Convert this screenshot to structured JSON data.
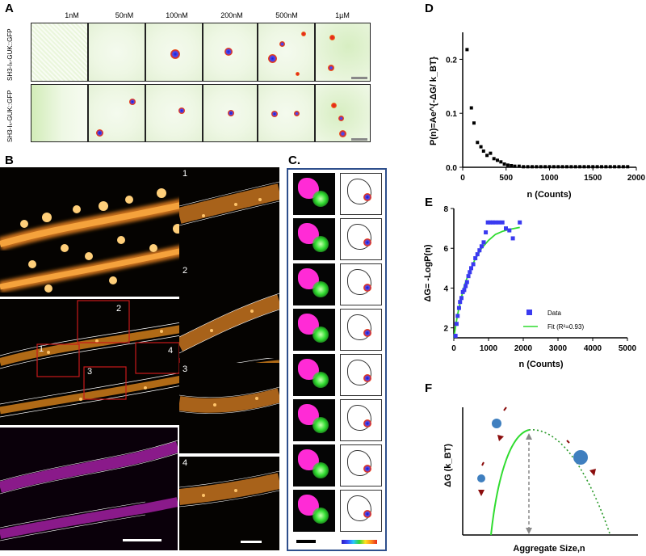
{
  "panels": {
    "a": "A",
    "b": "B",
    "c": "C.",
    "d": "D",
    "e": "E",
    "f": "F"
  },
  "panelA": {
    "concentrations": [
      "1nM",
      "50nM",
      "100nM",
      "200nM",
      "500nM",
      "1µM"
    ],
    "row_labels": [
      "SH3-Iₕ-GUK::GFP",
      "SH3-Iₕ-GUK::GFP"
    ]
  },
  "panelB": {
    "insets": [
      "1",
      "2",
      "3",
      "4"
    ],
    "box_labels": [
      "1",
      "2",
      "3",
      "4"
    ]
  },
  "chart_data": [
    {
      "type": "scatter",
      "panel": "D",
      "ylabel": "P(n)=Ae^{-ΔG/ k_BT}",
      "xlabel": "n (Counts)",
      "xlim": [
        0,
        2000
      ],
      "ylim": [
        0,
        0.25
      ],
      "xticks": [
        "0",
        "500",
        "1000",
        "1500",
        "2000"
      ],
      "yticks": [
        "0.0",
        "0.1",
        "0.2"
      ],
      "x": [
        50,
        100,
        130,
        170,
        210,
        240,
        280,
        320,
        360,
        400,
        440,
        480,
        520,
        560,
        600,
        650,
        700,
        750,
        800,
        850,
        900,
        950,
        1000,
        1050,
        1100,
        1150,
        1200,
        1250,
        1300,
        1350,
        1400,
        1450,
        1500,
        1550,
        1600,
        1650,
        1700,
        1750,
        1800,
        1850,
        1900
      ],
      "y": [
        0.218,
        0.11,
        0.082,
        0.046,
        0.038,
        0.03,
        0.022,
        0.026,
        0.016,
        0.013,
        0.01,
        0.006,
        0.004,
        0.003,
        0.002,
        0.002,
        0.001,
        0.001,
        0.001,
        0.001,
        0.001,
        0.001,
        0.001,
        0.001,
        0.001,
        0.001,
        0.001,
        0.001,
        0.001,
        0.001,
        0.001,
        0.001,
        0.001,
        0.001,
        0.001,
        0.001,
        0.001,
        0.001,
        0.001,
        0.001,
        0.001
      ]
    },
    {
      "type": "scatter",
      "panel": "E",
      "ylabel": "ΔG= -LogP(n)",
      "xlabel": "n (Counts)",
      "xlim": [
        0,
        5000
      ],
      "ylim": [
        1.5,
        8
      ],
      "xticks": [
        "0",
        "1000",
        "2000",
        "3000",
        "4000",
        "5000"
      ],
      "yticks": [
        "2",
        "4",
        "6",
        "8"
      ],
      "series": [
        {
          "name": "Data",
          "x": [
            50,
            80,
            110,
            150,
            180,
            220,
            260,
            300,
            340,
            380,
            420,
            460,
            500,
            560,
            620,
            680,
            740,
            800,
            860,
            920,
            980,
            1050,
            1120,
            1200,
            1300,
            1400,
            1500,
            1600,
            1700,
            1900
          ],
          "y": [
            1.6,
            2.2,
            2.6,
            3.0,
            3.3,
            3.5,
            3.8,
            3.9,
            4.1,
            4.3,
            4.6,
            4.8,
            5.0,
            5.2,
            5.5,
            5.7,
            5.9,
            6.1,
            6.3,
            6.8,
            7.3,
            7.3,
            7.3,
            7.3,
            7.3,
            7.3,
            7.0,
            6.9,
            6.5,
            7.3
          ]
        },
        {
          "name": "Fit (R²=0.93)",
          "x": [
            0,
            100,
            200,
            300,
            400,
            600,
            800,
            1000,
            1200,
            1400,
            1600,
            1900
          ],
          "y": [
            1.5,
            2.6,
            3.4,
            4.1,
            4.6,
            5.4,
            6.0,
            6.4,
            6.7,
            6.85,
            6.95,
            7.05
          ]
        }
      ],
      "legend_position": "right"
    },
    {
      "type": "line",
      "panel": "F",
      "ylabel": "ΔG (k_BT)",
      "xlabel": "Aggregate Size,n"
    }
  ],
  "colors": {
    "panel_c_border": "#2e4f8c",
    "data_blue": "#3a3af0",
    "fit_green": "#2fdc2f",
    "arrow_red": "#8b0d0d",
    "sphere_blue": "#3f7fbf"
  }
}
